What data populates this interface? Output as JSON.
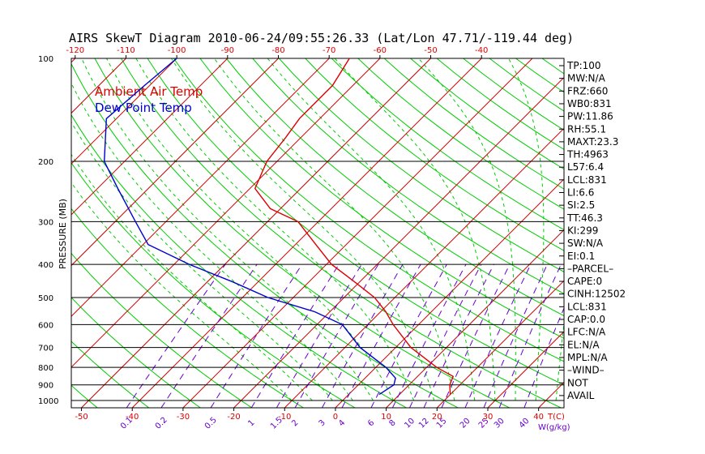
{
  "title": "AIRS SkewT Diagram 2010-06-24/09:55:26.33 (Lat/Lon 47.71/-119.44 deg)",
  "colors": {
    "ambient": "#dd0000",
    "dewpoint": "#0000cc",
    "dry_adiabat": "#00cc00",
    "isotherm": "#cc0000",
    "mixing_ratio": "#6600cc",
    "moist_adiabat": "#00cc00",
    "grid": "#000000"
  },
  "chart_data": {
    "type": "line",
    "title": "AIRS SkewT Diagram 2010-06-24/09:55:26.33 (Lat/Lon 47.71/-119.44 deg)",
    "ylabel": "PRESSURE (MB)",
    "xlabel_bottom": "T(C)",
    "mixing_ratio_unit": "W(g/kg)",
    "pressure_ticks": [
      100,
      200,
      300,
      400,
      500,
      600,
      700,
      800,
      900,
      1000
    ],
    "pressure_range": [
      100,
      1050
    ],
    "temperature_range_at_bottom": [
      -52,
      45
    ],
    "top_temperature_ticks": [
      -120,
      -110,
      -100,
      -90,
      -80,
      -70,
      -60,
      -50,
      -40
    ],
    "bottom_temperature_ticks": [
      -50,
      -40,
      -30,
      -20,
      -10,
      0,
      10,
      20,
      30,
      40
    ],
    "mixing_ratio_ticks": [
      "0.1",
      "0.2",
      "0.5",
      "1",
      "1.5",
      "2",
      "3",
      "4",
      "6",
      "8",
      "10",
      "12",
      "15",
      "20",
      "25",
      "30",
      "40"
    ],
    "legend": [
      {
        "label": "Ambient Air Temp",
        "color": "#dd0000"
      },
      {
        "label": "Dew Point Temp",
        "color": "#0000cc"
      }
    ],
    "series": [
      {
        "name": "Ambient Air Temp",
        "points": [
          {
            "p": 100,
            "t": -66
          },
          {
            "p": 120,
            "t": -64
          },
          {
            "p": 150,
            "t": -64
          },
          {
            "p": 170,
            "t": -63
          },
          {
            "p": 200,
            "t": -62
          },
          {
            "p": 240,
            "t": -59
          },
          {
            "p": 275,
            "t": -52
          },
          {
            "p": 300,
            "t": -44
          },
          {
            "p": 350,
            "t": -36
          },
          {
            "p": 400,
            "t": -29
          },
          {
            "p": 450,
            "t": -21
          },
          {
            "p": 500,
            "t": -14
          },
          {
            "p": 550,
            "t": -9
          },
          {
            "p": 600,
            "t": -5
          },
          {
            "p": 700,
            "t": 3
          },
          {
            "p": 800,
            "t": 12
          },
          {
            "p": 850,
            "t": 17
          },
          {
            "p": 900,
            "t": 18
          },
          {
            "p": 960,
            "t": 20
          }
        ]
      },
      {
        "name": "Dew Point Temp",
        "points": [
          {
            "p": 100,
            "t": -100
          },
          {
            "p": 120,
            "t": -101
          },
          {
            "p": 150,
            "t": -102
          },
          {
            "p": 200,
            "t": -94
          },
          {
            "p": 240,
            "t": -86
          },
          {
            "p": 300,
            "t": -76
          },
          {
            "p": 350,
            "t": -69
          },
          {
            "p": 400,
            "t": -57
          },
          {
            "p": 450,
            "t": -45
          },
          {
            "p": 500,
            "t": -35
          },
          {
            "p": 550,
            "t": -23
          },
          {
            "p": 600,
            "t": -15
          },
          {
            "p": 700,
            "t": -7
          },
          {
            "p": 800,
            "t": 2
          },
          {
            "p": 860,
            "t": 6
          },
          {
            "p": 900,
            "t": 7
          },
          {
            "p": 960,
            "t": 6
          }
        ]
      }
    ]
  },
  "indices": [
    "TP:100",
    "MW:N/A",
    "FRZ:660",
    "WB0:831",
    "PW:11.86",
    "RH:55.1",
    "MAXT:23.3",
    "TH:4963",
    "L57:6.4",
    "LCL:831",
    "LI:6.6",
    "SI:2.5",
    "TT:46.3",
    "KI:299",
    "SW:N/A",
    "EI:0.1",
    "–PARCEL–",
    "CAPE:0",
    "CINH:12502",
    "LCL:831",
    "CAP:0.0",
    "LFC:N/A",
    "EL:N/A",
    "MPL:N/A",
    "–WIND–",
    "NOT",
    "AVAIL"
  ]
}
